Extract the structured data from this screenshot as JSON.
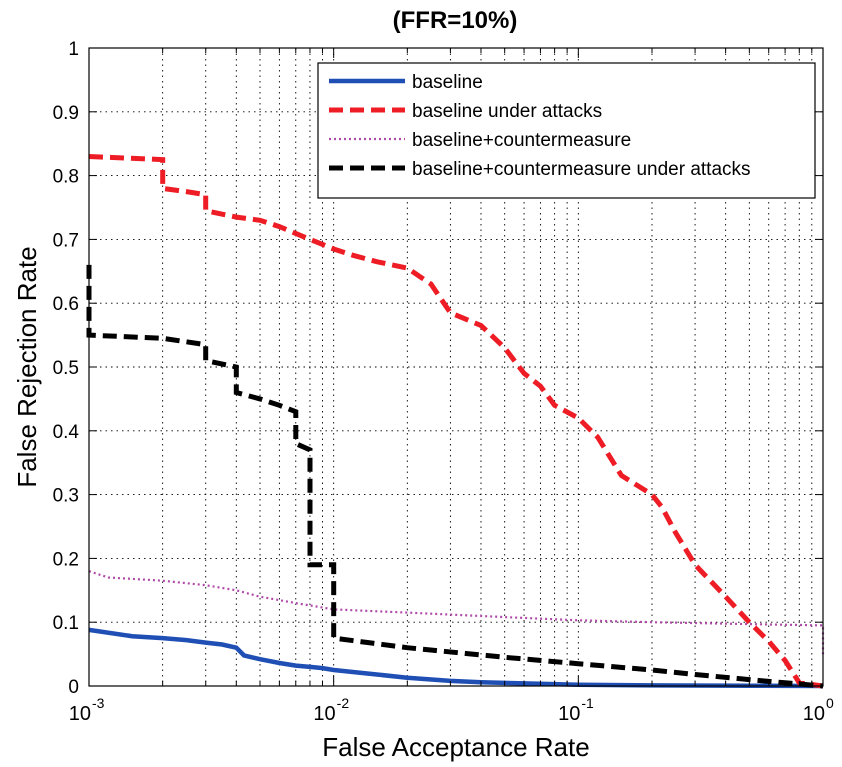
{
  "chart_data": {
    "type": "line",
    "title": "(FFR=10%)",
    "xlabel": "False Acceptance Rate",
    "ylabel": "False Rejection Rate",
    "xscale": "log",
    "xlim": [
      0.001,
      1
    ],
    "ylim": [
      0,
      1
    ],
    "grid": true,
    "legend_position": "top-right",
    "x_ticks": [
      {
        "value": 0.001,
        "base": "10",
        "exp": "-3"
      },
      {
        "value": 0.01,
        "base": "10",
        "exp": "-2"
      },
      {
        "value": 0.1,
        "base": "10",
        "exp": "-1"
      },
      {
        "value": 1,
        "base": "10",
        "exp": "0"
      }
    ],
    "y_ticks": [
      {
        "value": 0,
        "label": "0"
      },
      {
        "value": 0.1,
        "label": "0.1"
      },
      {
        "value": 0.2,
        "label": "0.2"
      },
      {
        "value": 0.3,
        "label": "0.3"
      },
      {
        "value": 0.4,
        "label": "0.4"
      },
      {
        "value": 0.5,
        "label": "0.5"
      },
      {
        "value": 0.6,
        "label": "0.6"
      },
      {
        "value": 0.7,
        "label": "0.7"
      },
      {
        "value": 0.8,
        "label": "0.8"
      },
      {
        "value": 0.9,
        "label": "0.9"
      },
      {
        "value": 1,
        "label": "1"
      }
    ],
    "series": [
      {
        "name": "baseline",
        "color": "#1f4fb4",
        "style": "solid",
        "points": [
          [
            0.001,
            0.088
          ],
          [
            0.0015,
            0.078
          ],
          [
            0.002,
            0.075
          ],
          [
            0.0025,
            0.072
          ],
          [
            0.003,
            0.068
          ],
          [
            0.0035,
            0.065
          ],
          [
            0.004,
            0.06
          ],
          [
            0.0043,
            0.048
          ],
          [
            0.005,
            0.042
          ],
          [
            0.006,
            0.036
          ],
          [
            0.007,
            0.032
          ],
          [
            0.008,
            0.03
          ],
          [
            0.009,
            0.028
          ],
          [
            0.01,
            0.025
          ],
          [
            0.015,
            0.018
          ],
          [
            0.02,
            0.013
          ],
          [
            0.03,
            0.008
          ],
          [
            0.04,
            0.006
          ],
          [
            0.06,
            0.004
          ],
          [
            0.1,
            0.002
          ],
          [
            0.2,
            0.001
          ],
          [
            0.5,
            0.0005
          ],
          [
            1,
            0
          ]
        ]
      },
      {
        "name": "baseline under attacks",
        "color": "#ee1c24",
        "style": "dashed",
        "points": [
          [
            0.001,
            0.83
          ],
          [
            0.002,
            0.825
          ],
          [
            0.002,
            0.78
          ],
          [
            0.0025,
            0.775
          ],
          [
            0.003,
            0.77
          ],
          [
            0.003,
            0.745
          ],
          [
            0.004,
            0.735
          ],
          [
            0.005,
            0.73
          ],
          [
            0.006,
            0.72
          ],
          [
            0.008,
            0.7
          ],
          [
            0.01,
            0.685
          ],
          [
            0.012,
            0.675
          ],
          [
            0.015,
            0.665
          ],
          [
            0.02,
            0.655
          ],
          [
            0.025,
            0.63
          ],
          [
            0.03,
            0.585
          ],
          [
            0.04,
            0.565
          ],
          [
            0.05,
            0.53
          ],
          [
            0.06,
            0.49
          ],
          [
            0.07,
            0.47
          ],
          [
            0.08,
            0.44
          ],
          [
            0.1,
            0.42
          ],
          [
            0.12,
            0.39
          ],
          [
            0.15,
            0.33
          ],
          [
            0.2,
            0.3
          ],
          [
            0.22,
            0.28
          ],
          [
            0.25,
            0.24
          ],
          [
            0.3,
            0.19
          ],
          [
            0.4,
            0.14
          ],
          [
            0.5,
            0.1
          ],
          [
            0.6,
            0.07
          ],
          [
            0.7,
            0.04
          ],
          [
            0.8,
            0.005
          ],
          [
            1,
            0
          ]
        ]
      },
      {
        "name": "baseline+countermeasure",
        "color": "#b04aa8",
        "style": "dotted",
        "points": [
          [
            0.001,
            0.18
          ],
          [
            0.0012,
            0.17
          ],
          [
            0.002,
            0.165
          ],
          [
            0.003,
            0.158
          ],
          [
            0.004,
            0.15
          ],
          [
            0.005,
            0.14
          ],
          [
            0.007,
            0.13
          ],
          [
            0.01,
            0.12
          ],
          [
            0.02,
            0.115
          ],
          [
            0.05,
            0.108
          ],
          [
            0.1,
            0.103
          ],
          [
            0.2,
            0.1
          ],
          [
            0.5,
            0.097
          ],
          [
            1,
            0.095
          ],
          [
            1,
            0.05
          ]
        ]
      },
      {
        "name": "baseline+countermeasure under attacks",
        "color": "#000000",
        "style": "dashed",
        "points": [
          [
            0.001,
            0.66
          ],
          [
            0.001,
            0.55
          ],
          [
            0.002,
            0.545
          ],
          [
            0.003,
            0.535
          ],
          [
            0.003,
            0.51
          ],
          [
            0.004,
            0.5
          ],
          [
            0.004,
            0.46
          ],
          [
            0.005,
            0.45
          ],
          [
            0.006,
            0.44
          ],
          [
            0.007,
            0.43
          ],
          [
            0.007,
            0.38
          ],
          [
            0.008,
            0.37
          ],
          [
            0.008,
            0.19
          ],
          [
            0.009,
            0.19
          ],
          [
            0.01,
            0.19
          ],
          [
            0.01,
            0.075
          ],
          [
            0.02,
            0.06
          ],
          [
            0.05,
            0.045
          ],
          [
            0.1,
            0.035
          ],
          [
            0.2,
            0.025
          ],
          [
            0.3,
            0.018
          ],
          [
            0.5,
            0.01
          ],
          [
            0.7,
            0.005
          ],
          [
            1,
            0
          ]
        ]
      }
    ]
  }
}
